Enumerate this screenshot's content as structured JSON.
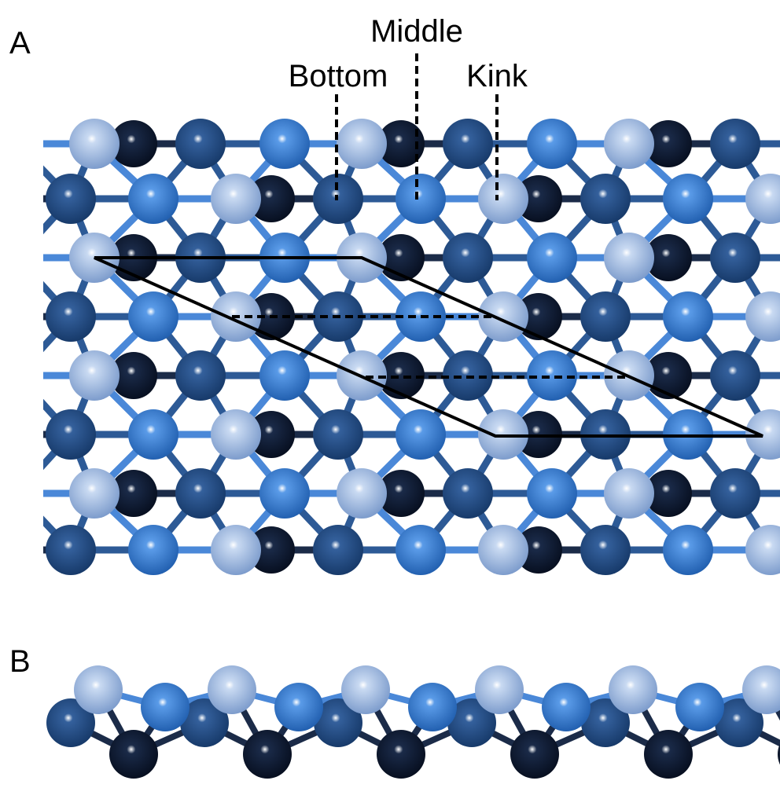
{
  "panel_a": {
    "label": "A",
    "sites": [
      "Bottom",
      "Middle",
      "Kink"
    ]
  },
  "panel_b": {
    "label": "B"
  }
}
